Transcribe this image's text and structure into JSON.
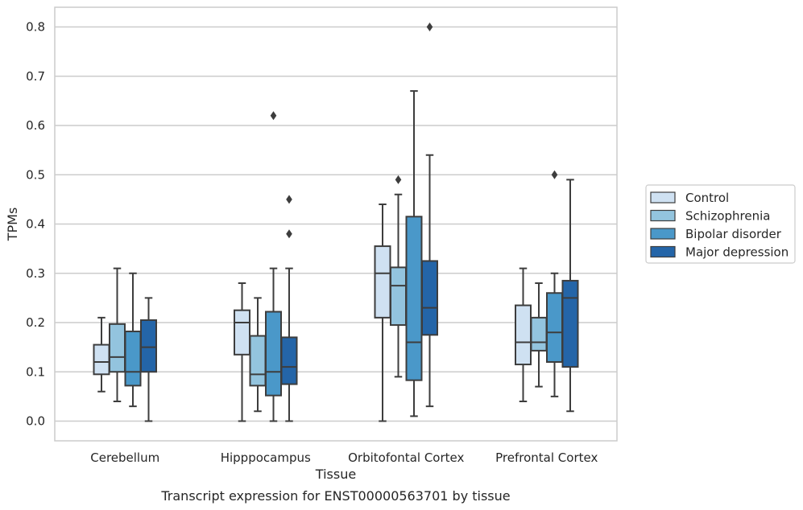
{
  "chart_data": {
    "type": "boxplot",
    "caption": "Transcript expression for ENST00000563701 by tissue",
    "xlabel": "Tissue",
    "ylabel": "TPMs",
    "ylim": [
      -0.04,
      0.84
    ],
    "yticks": [
      0.0,
      0.1,
      0.2,
      0.3,
      0.4,
      0.5,
      0.6,
      0.7,
      0.8
    ],
    "ytick_labels": [
      "0.0",
      "0.1",
      "0.2",
      "0.3",
      "0.4",
      "0.5",
      "0.6",
      "0.7",
      "0.8"
    ],
    "grid": true,
    "legend_position": "center-right outside",
    "categories": [
      "Cerebellum",
      "Hipppocampus",
      "Orbitofontal Cortex",
      "Prefrontal Cortex"
    ],
    "series": [
      {
        "name": "Control",
        "color": "#cfe1f2",
        "boxes": [
          {
            "whislo": 0.06,
            "q1": 0.095,
            "med": 0.12,
            "q3": 0.155,
            "whishi": 0.21,
            "fliers": []
          },
          {
            "whislo": 0.0,
            "q1": 0.135,
            "med": 0.2,
            "q3": 0.225,
            "whishi": 0.28,
            "fliers": []
          },
          {
            "whislo": 0.0,
            "q1": 0.21,
            "med": 0.3,
            "q3": 0.355,
            "whishi": 0.44,
            "fliers": []
          },
          {
            "whislo": 0.04,
            "q1": 0.115,
            "med": 0.16,
            "q3": 0.235,
            "whishi": 0.31,
            "fliers": []
          }
        ]
      },
      {
        "name": "Schizophrenia",
        "color": "#93c4de",
        "boxes": [
          {
            "whislo": 0.04,
            "q1": 0.1,
            "med": 0.13,
            "q3": 0.197,
            "whishi": 0.31,
            "fliers": []
          },
          {
            "whislo": 0.02,
            "q1": 0.072,
            "med": 0.095,
            "q3": 0.173,
            "whishi": 0.25,
            "fliers": []
          },
          {
            "whislo": 0.09,
            "q1": 0.195,
            "med": 0.275,
            "q3": 0.312,
            "whishi": 0.46,
            "fliers": [
              0.49
            ]
          },
          {
            "whislo": 0.07,
            "q1": 0.143,
            "med": 0.16,
            "q3": 0.21,
            "whishi": 0.28,
            "fliers": []
          }
        ]
      },
      {
        "name": "Bipolar disorder",
        "color": "#4a98c9",
        "boxes": [
          {
            "whislo": 0.03,
            "q1": 0.072,
            "med": 0.1,
            "q3": 0.182,
            "whishi": 0.3,
            "fliers": []
          },
          {
            "whislo": 0.0,
            "q1": 0.052,
            "med": 0.1,
            "q3": 0.222,
            "whishi": 0.31,
            "fliers": [
              0.62
            ]
          },
          {
            "whislo": 0.01,
            "q1": 0.083,
            "med": 0.16,
            "q3": 0.415,
            "whishi": 0.67,
            "fliers": []
          },
          {
            "whislo": 0.05,
            "q1": 0.12,
            "med": 0.18,
            "q3": 0.26,
            "whishi": 0.3,
            "fliers": [
              0.5
            ]
          }
        ]
      },
      {
        "name": "Major depression",
        "color": "#2465a8",
        "boxes": [
          {
            "whislo": 0.0,
            "q1": 0.1,
            "med": 0.15,
            "q3": 0.205,
            "whishi": 0.25,
            "fliers": []
          },
          {
            "whislo": 0.0,
            "q1": 0.075,
            "med": 0.11,
            "q3": 0.17,
            "whishi": 0.31,
            "fliers": [
              0.38,
              0.45
            ]
          },
          {
            "whislo": 0.03,
            "q1": 0.175,
            "med": 0.23,
            "q3": 0.325,
            "whishi": 0.54,
            "fliers": [
              0.8
            ]
          },
          {
            "whislo": 0.02,
            "q1": 0.11,
            "med": 0.25,
            "q3": 0.285,
            "whishi": 0.49,
            "fliers": []
          }
        ]
      }
    ]
  }
}
